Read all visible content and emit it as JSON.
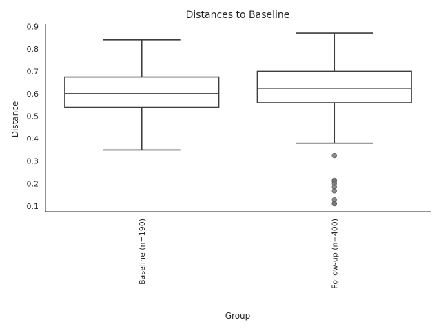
{
  "chart_data": {
    "type": "box",
    "title": "Distances to Baseline",
    "xlabel": "Group",
    "ylabel": "Distance",
    "categories": [
      "Baseline (n=190)",
      "Follow-up (n=400)"
    ],
    "yticks": [
      0.1,
      0.2,
      0.3,
      0.4,
      0.5,
      0.6,
      0.7,
      0.8,
      0.9
    ],
    "ytick_labels": [
      "0.1",
      "0.2",
      "0.3",
      "0.4",
      "0.5",
      "0.6",
      "0.7",
      "0.8",
      "0.9"
    ],
    "ylim": [
      0.075,
      0.91
    ],
    "grid": false,
    "boxes": [
      {
        "whisker_low": 0.35,
        "q1": 0.54,
        "median": 0.6,
        "q3": 0.675,
        "whisker_high": 0.84,
        "outliers": []
      },
      {
        "whisker_low": 0.38,
        "q1": 0.56,
        "median": 0.625,
        "q3": 0.7,
        "whisker_high": 0.87,
        "outliers": [
          0.325,
          0.215,
          0.21,
          0.2,
          0.185,
          0.168,
          0.128,
          0.112,
          0.11
        ]
      }
    ],
    "colors": {
      "line": "#3d3d3d",
      "outlier": "#777777",
      "text": "#262626"
    }
  }
}
